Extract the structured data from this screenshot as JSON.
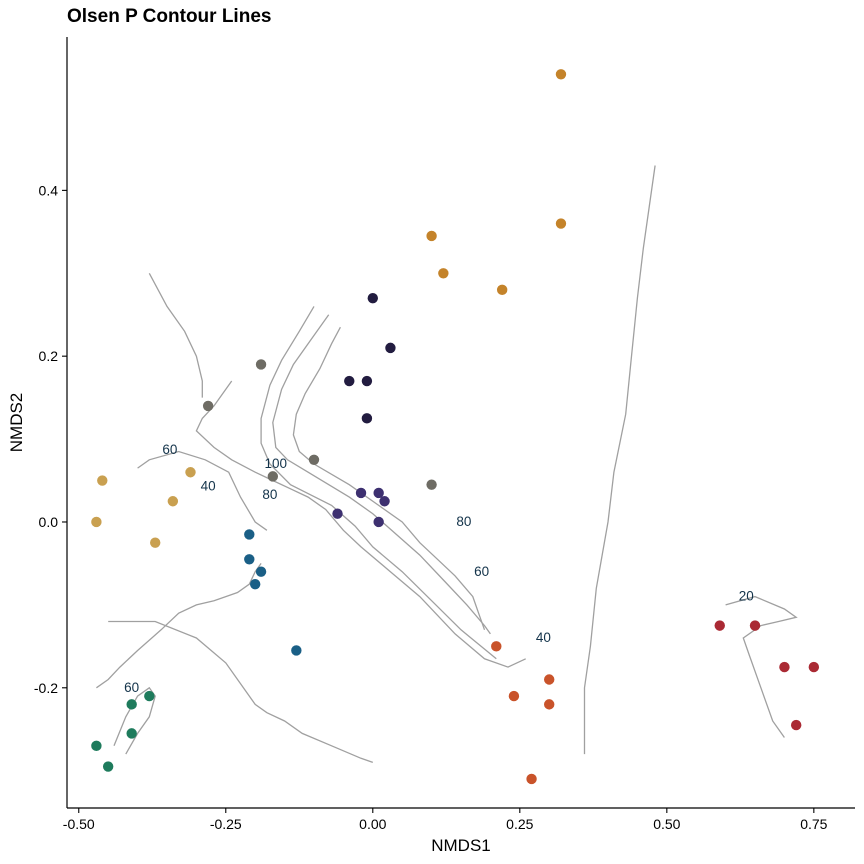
{
  "chart_data": {
    "type": "scatter",
    "title": "Olsen P Contour Lines",
    "xlabel": "NMDS1",
    "ylabel": "NMDS2",
    "xlim": [
      -0.52,
      0.82
    ],
    "ylim": [
      -0.345,
      0.585
    ],
    "x_ticks": [
      -0.5,
      -0.25,
      0.0,
      0.25,
      0.5,
      0.75
    ],
    "x_tick_labels": [
      "-0.50",
      "-0.25",
      "0.00",
      "0.25",
      "0.50",
      "0.75"
    ],
    "y_ticks": [
      -0.2,
      0.0,
      0.2,
      0.4
    ],
    "y_tick_labels": [
      "-0.2",
      "0.0",
      "0.2",
      "0.4"
    ],
    "grid": false,
    "legend": "none",
    "contour_color": "#a0a0a0",
    "contour_label_color": "#13334a",
    "contour_lines": [
      [
        [
          -0.055,
          0.235
        ],
        [
          -0.07,
          0.215
        ],
        [
          -0.09,
          0.185
        ],
        [
          -0.115,
          0.155
        ],
        [
          -0.13,
          0.13
        ],
        [
          -0.135,
          0.105
        ],
        [
          -0.125,
          0.085
        ],
        [
          -0.1,
          0.07
        ],
        [
          -0.04,
          0.045
        ],
        [
          0.01,
          0.02
        ],
        [
          0.05,
          0.0
        ],
        [
          0.08,
          -0.025
        ],
        [
          0.11,
          -0.045
        ],
        [
          0.14,
          -0.065
        ],
        [
          0.17,
          -0.09
        ],
        [
          0.18,
          -0.11
        ],
        [
          0.19,
          -0.13
        ]
      ],
      [
        [
          -0.075,
          0.25
        ],
        [
          -0.105,
          0.22
        ],
        [
          -0.135,
          0.19
        ],
        [
          -0.155,
          0.16
        ],
        [
          -0.17,
          0.12
        ],
        [
          -0.165,
          0.09
        ],
        [
          -0.145,
          0.075
        ],
        [
          -0.11,
          0.06
        ],
        [
          -0.04,
          0.03
        ],
        [
          0.0,
          0.01
        ],
        [
          0.04,
          -0.015
        ],
        [
          0.08,
          -0.04
        ],
        [
          0.12,
          -0.07
        ],
        [
          0.16,
          -0.1
        ],
        [
          0.19,
          -0.125
        ],
        [
          0.2,
          -0.135
        ]
      ],
      [
        [
          -0.1,
          0.26
        ],
        [
          -0.125,
          0.23
        ],
        [
          -0.155,
          0.195
        ],
        [
          -0.175,
          0.165
        ],
        [
          -0.19,
          0.125
        ],
        [
          -0.19,
          0.095
        ],
        [
          -0.175,
          0.07
        ],
        [
          -0.14,
          0.045
        ],
        [
          -0.07,
          0.02
        ],
        [
          -0.03,
          -0.005
        ],
        [
          0.0,
          -0.03
        ],
        [
          0.05,
          -0.06
        ],
        [
          0.1,
          -0.095
        ],
        [
          0.15,
          -0.13
        ],
        [
          0.21,
          -0.165
        ]
      ],
      [
        [
          -0.24,
          0.17
        ],
        [
          -0.27,
          0.14
        ],
        [
          -0.29,
          0.125
        ],
        [
          -0.3,
          0.11
        ],
        [
          -0.27,
          0.09
        ],
        [
          -0.24,
          0.075
        ],
        [
          -0.2,
          0.06
        ],
        [
          -0.17,
          0.05
        ],
        [
          -0.14,
          0.04
        ],
        [
          -0.11,
          0.03
        ],
        [
          -0.08,
          0.015
        ],
        [
          -0.05,
          -0.01
        ],
        [
          -0.02,
          -0.03
        ],
        [
          0.03,
          -0.06
        ],
        [
          0.08,
          -0.09
        ],
        [
          0.14,
          -0.135
        ],
        [
          0.19,
          -0.165
        ],
        [
          0.23,
          -0.175
        ],
        [
          0.26,
          -0.165
        ]
      ],
      [
        [
          -0.18,
          -0.01
        ],
        [
          -0.2,
          0.0
        ],
        [
          -0.225,
          0.03
        ],
        [
          -0.245,
          0.06
        ],
        [
          -0.285,
          0.075
        ],
        [
          -0.33,
          0.085
        ],
        [
          -0.38,
          0.075
        ],
        [
          -0.4,
          0.065
        ]
      ],
      [
        [
          -0.38,
          0.3
        ],
        [
          -0.35,
          0.26
        ],
        [
          -0.32,
          0.23
        ],
        [
          -0.3,
          0.2
        ],
        [
          -0.29,
          0.17
        ],
        [
          -0.29,
          0.15
        ]
      ],
      [
        [
          -0.19,
          -0.05
        ],
        [
          -0.2,
          -0.06
        ],
        [
          -0.21,
          -0.075
        ],
        [
          -0.23,
          -0.085
        ],
        [
          -0.25,
          -0.09
        ],
        [
          -0.27,
          -0.095
        ],
        [
          -0.3,
          -0.1
        ],
        [
          -0.33,
          -0.11
        ],
        [
          -0.36,
          -0.13
        ],
        [
          -0.4,
          -0.155
        ],
        [
          -0.43,
          -0.175
        ],
        [
          -0.45,
          -0.19
        ],
        [
          -0.47,
          -0.2
        ]
      ],
      [
        [
          -0.44,
          -0.27
        ],
        [
          -0.42,
          -0.235
        ],
        [
          -0.4,
          -0.21
        ],
        [
          -0.38,
          -0.2
        ],
        [
          -0.37,
          -0.21
        ],
        [
          -0.38,
          -0.235
        ],
        [
          -0.4,
          -0.255
        ],
        [
          -0.42,
          -0.28
        ]
      ],
      [
        [
          -0.45,
          -0.12
        ],
        [
          -0.37,
          -0.12
        ],
        [
          -0.3,
          -0.14
        ],
        [
          -0.25,
          -0.17
        ],
        [
          -0.22,
          -0.2
        ],
        [
          -0.2,
          -0.22
        ],
        [
          -0.18,
          -0.23
        ],
        [
          -0.15,
          -0.24
        ],
        [
          -0.12,
          -0.255
        ],
        [
          -0.07,
          -0.27
        ],
        [
          -0.02,
          -0.285
        ],
        [
          0.0,
          -0.29
        ]
      ],
      [
        [
          0.6,
          -0.1
        ],
        [
          0.65,
          -0.09
        ],
        [
          0.7,
          -0.105
        ],
        [
          0.72,
          -0.115
        ],
        [
          0.69,
          -0.12
        ],
        [
          0.66,
          -0.125
        ],
        [
          0.63,
          -0.14
        ],
        [
          0.64,
          -0.16
        ],
        [
          0.66,
          -0.2
        ],
        [
          0.68,
          -0.24
        ],
        [
          0.7,
          -0.26
        ]
      ],
      [
        [
          0.48,
          0.43
        ],
        [
          0.47,
          0.38
        ],
        [
          0.46,
          0.33
        ],
        [
          0.45,
          0.27
        ],
        [
          0.44,
          0.2
        ],
        [
          0.43,
          0.13
        ],
        [
          0.41,
          0.06
        ],
        [
          0.4,
          0.0
        ],
        [
          0.38,
          -0.08
        ],
        [
          0.37,
          -0.15
        ],
        [
          0.36,
          -0.2
        ],
        [
          0.36,
          -0.28
        ]
      ]
    ],
    "contour_labels": [
      {
        "text": "100",
        "x": -0.165,
        "y": 0.065
      },
      {
        "text": "80",
        "x": -0.175,
        "y": 0.028
      },
      {
        "text": "60",
        "x": -0.345,
        "y": 0.082
      },
      {
        "text": "40",
        "x": -0.28,
        "y": 0.038
      },
      {
        "text": "80",
        "x": 0.155,
        "y": -0.005
      },
      {
        "text": "60",
        "x": 0.185,
        "y": -0.065
      },
      {
        "text": "40",
        "x": 0.29,
        "y": -0.145
      },
      {
        "text": "20",
        "x": 0.635,
        "y": -0.095
      },
      {
        "text": "60",
        "x": -0.41,
        "y": -0.205
      }
    ],
    "series": [
      {
        "color": "#c4832a",
        "points": [
          [
            0.32,
            0.54
          ],
          [
            0.32,
            0.36
          ],
          [
            0.1,
            0.345
          ],
          [
            0.12,
            0.3
          ],
          [
            0.22,
            0.28
          ]
        ]
      },
      {
        "color": "#221c40",
        "points": [
          [
            0.0,
            0.27
          ],
          [
            0.03,
            0.21
          ],
          [
            -0.04,
            0.17
          ],
          [
            -0.01,
            0.17
          ],
          [
            -0.01,
            0.125
          ]
        ]
      },
      {
        "color": "#6e6c64",
        "points": [
          [
            -0.19,
            0.19
          ],
          [
            -0.28,
            0.14
          ],
          [
            -0.17,
            0.055
          ],
          [
            -0.1,
            0.075
          ],
          [
            0.1,
            0.045
          ]
        ]
      },
      {
        "color": "#3d3070",
        "points": [
          [
            -0.02,
            0.035
          ],
          [
            0.01,
            0.035
          ],
          [
            0.02,
            0.025
          ],
          [
            -0.06,
            0.01
          ],
          [
            0.01,
            0.0
          ]
        ]
      },
      {
        "color": "#c9a050",
        "points": [
          [
            -0.46,
            0.05
          ],
          [
            -0.47,
            0.0
          ],
          [
            -0.31,
            0.06
          ],
          [
            -0.34,
            0.025
          ],
          [
            -0.37,
            -0.025
          ]
        ]
      },
      {
        "color": "#1a5f86",
        "points": [
          [
            -0.21,
            -0.015
          ],
          [
            -0.21,
            -0.045
          ],
          [
            -0.19,
            -0.06
          ],
          [
            -0.2,
            -0.075
          ],
          [
            -0.13,
            -0.155
          ]
        ]
      },
      {
        "color": "#1e7b5c",
        "points": [
          [
            -0.38,
            -0.21
          ],
          [
            -0.41,
            -0.22
          ],
          [
            -0.41,
            -0.255
          ],
          [
            -0.47,
            -0.27
          ],
          [
            -0.45,
            -0.295
          ]
        ]
      },
      {
        "color": "#c9532a",
        "points": [
          [
            0.21,
            -0.15
          ],
          [
            0.24,
            -0.21
          ],
          [
            0.3,
            -0.19
          ],
          [
            0.3,
            -0.22
          ],
          [
            0.27,
            -0.31
          ]
        ]
      },
      {
        "color": "#aa2a34",
        "points": [
          [
            0.59,
            -0.125
          ],
          [
            0.65,
            -0.125
          ],
          [
            0.7,
            -0.175
          ],
          [
            0.75,
            -0.175
          ],
          [
            0.72,
            -0.245
          ]
        ]
      }
    ]
  }
}
